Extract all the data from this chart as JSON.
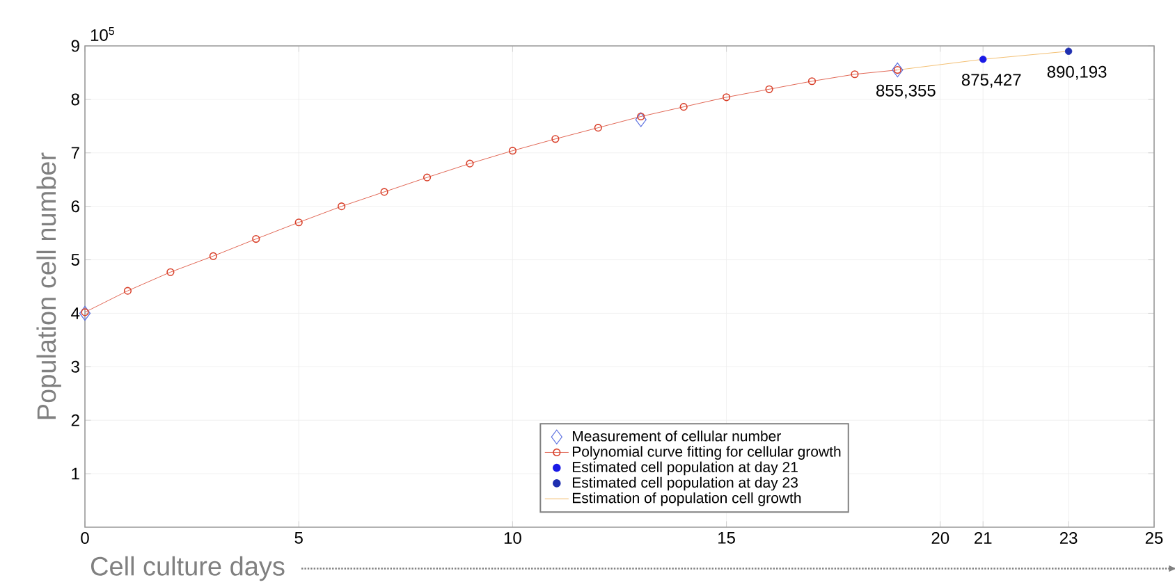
{
  "chart_data": {
    "type": "line",
    "xlabel": "Cell culture days",
    "ylabel": "Population cell number",
    "annotations": [
      "10$^{5}$",
      {
        "text": "855,355",
        "x": 19,
        "y": 8.55
      },
      {
        "text": "875,427",
        "x": 21,
        "y": 8.75
      },
      {
        "text": "890,193",
        "x": 23,
        "y": 8.9
      }
    ],
    "xlim": [
      0,
      25
    ],
    "xticks": [
      0,
      5,
      10,
      15,
      20,
      21,
      23,
      25
    ],
    "ylim": [
      0,
      9
    ],
    "yticks": [
      1,
      2,
      3,
      4,
      5,
      6,
      7,
      8,
      9
    ],
    "grid": true,
    "legend": "bottom",
    "series": [
      {
        "name": "Measurement  of cellular number",
        "type": "scatter",
        "marker": "diamond",
        "color": "#5a6fe0",
        "x": [
          0,
          13,
          19
        ],
        "values": [
          4.0,
          7.62,
          8.55
        ]
      },
      {
        "name": "Polynomial curve fitting for cellular growth",
        "marker": "circle",
        "color": "#d9412b",
        "x": [
          0,
          1,
          2,
          3,
          4,
          5,
          6,
          7,
          8,
          9,
          10,
          11,
          12,
          13,
          14,
          15,
          16,
          17,
          18,
          19
        ],
        "values": [
          4.02,
          4.42,
          4.77,
          5.07,
          5.39,
          5.7,
          6.0,
          6.27,
          6.54,
          6.8,
          7.04,
          7.26,
          7.47,
          7.68,
          7.86,
          8.04,
          8.19,
          8.34,
          8.47,
          8.55
        ]
      },
      {
        "name": "Estimated cell population at day 21",
        "type": "scatter",
        "marker": "circle",
        "color": "#1a1ae6",
        "x": [
          21
        ],
        "values": [
          8.75
        ]
      },
      {
        "name": "Estimated cell population at day 23",
        "type": "scatter",
        "marker": "circle",
        "color": "#1f2fb0",
        "x": [
          23
        ],
        "values": [
          8.9
        ]
      },
      {
        "name": "Estimation of population cell growth",
        "marker": "none",
        "color": "#f0b050",
        "x": [
          19,
          21,
          23
        ],
        "values": [
          8.55,
          8.75,
          8.9
        ]
      }
    ]
  }
}
